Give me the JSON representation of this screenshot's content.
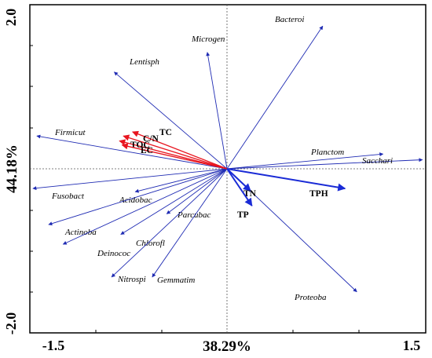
{
  "chart_data": {
    "type": "scatter",
    "subtype": "rda-biplot",
    "xlabel": "38.29%",
    "ylabel": "44.18%",
    "xlim": [
      -1.5,
      1.5
    ],
    "ylim": [
      -2.0,
      2.0
    ],
    "x_tick_labels": [
      "-1.5",
      "38.29%",
      "1.5"
    ],
    "y_tick_labels": [
      "2.0",
      "44.18%",
      "-2.0"
    ],
    "grid": false,
    "reference_lines": "dashed lines at x=0 and y=0",
    "colors": {
      "species": "#1f2bb3",
      "env_red": "#e8141e",
      "env_blue": "#1a2bd6",
      "axes": "#000000"
    },
    "species_vectors": [
      {
        "name": "Bacteroi",
        "x": 0.73,
        "y": 1.74
      },
      {
        "name": "Microgen",
        "x": -0.15,
        "y": 1.42
      },
      {
        "name": "Lentisph",
        "x": -0.86,
        "y": 1.18
      },
      {
        "name": "Firmicut",
        "x": -1.45,
        "y": 0.4
      },
      {
        "name": "Planctom",
        "x": 1.19,
        "y": 0.18
      },
      {
        "name": "Sacchari",
        "x": 1.49,
        "y": 0.11
      },
      {
        "name": "Fusobact",
        "x": -1.48,
        "y": -0.24
      },
      {
        "name": "Acidobac",
        "x": -0.7,
        "y": -0.28
      },
      {
        "name": "Actinoba",
        "x": -1.36,
        "y": -0.68
      },
      {
        "name": "Parcubac",
        "x": -0.46,
        "y": -0.55
      },
      {
        "name": "Chlorofl",
        "x": -0.81,
        "y": -0.8
      },
      {
        "name": "Deinococ",
        "x": -1.25,
        "y": -0.92
      },
      {
        "name": "Nitrospi",
        "x": -0.88,
        "y": -1.32
      },
      {
        "name": "Gemmatim",
        "x": -0.57,
        "y": -1.32
      },
      {
        "name": "Proteoba",
        "x": 0.99,
        "y": -1.5
      }
    ],
    "env_vectors": [
      {
        "name": "TC",
        "x": -0.72,
        "y": 0.45,
        "color": "red"
      },
      {
        "name": "C/N",
        "x": -0.79,
        "y": 0.4,
        "color": "red"
      },
      {
        "name": "TOC",
        "x": -0.82,
        "y": 0.34,
        "color": "red"
      },
      {
        "name": "EC",
        "x": -0.8,
        "y": 0.29,
        "color": "red"
      },
      {
        "name": "TN",
        "x": 0.18,
        "y": -0.27,
        "color": "blue"
      },
      {
        "name": "TP",
        "x": 0.19,
        "y": -0.45,
        "color": "blue"
      },
      {
        "name": "TPH",
        "x": 0.9,
        "y": -0.24,
        "color": "blue"
      }
    ]
  }
}
